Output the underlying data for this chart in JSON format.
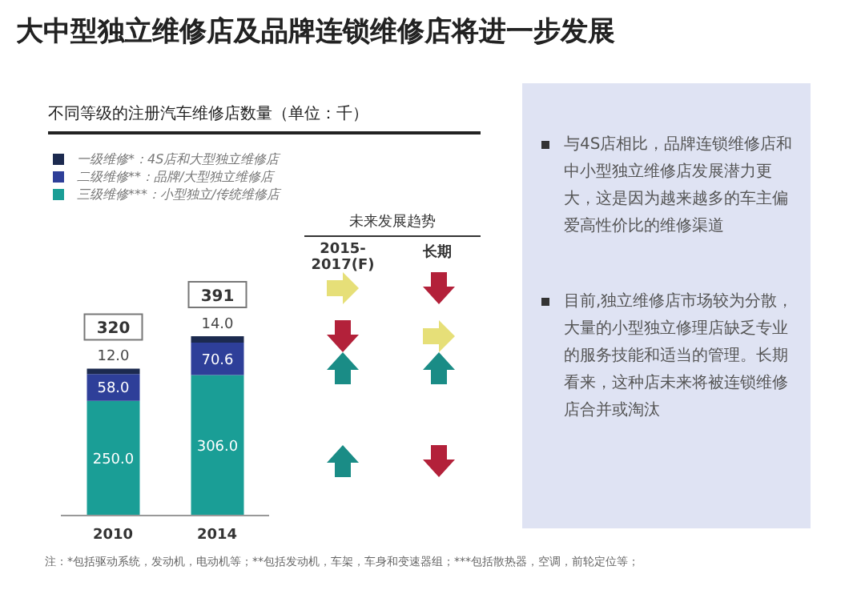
{
  "chart_data": {
    "type": "bar",
    "title": "大中型独立维修店及品牌连锁维修店将进一步发展",
    "subtitle": "不同等级的注册汽车维修店数量（单位：千）",
    "categories": [
      "2010",
      "2014"
    ],
    "stacked": true,
    "legend": "top left",
    "series": [
      {
        "name": "三级维修***：小型独立/传统维修店",
        "color": "#1a9e96",
        "values": [
          250.0,
          306.0
        ],
        "value_labels": [
          "250.0",
          "306.0"
        ]
      },
      {
        "name": "二级维修**：品牌/大型独立维修店",
        "color": "#2e3f99",
        "values": [
          58.0,
          70.6
        ],
        "value_labels": [
          "58.0",
          "70.6"
        ]
      },
      {
        "name": "一级维修*：4S店和大型独立维修店",
        "color": "#1c2a4f",
        "values": [
          12.0,
          14.0
        ],
        "value_labels": [
          "12.0",
          "14.0"
        ]
      }
    ],
    "totals": [
      "320",
      "391"
    ],
    "annotations": [
      "未来发展趋势",
      "2015-2017(F)",
      "长期",
      "与4S店相比，品牌连锁维修店和中小型独立维修店发展潜力更大，这是因为越来越多的车主偏爱高性价比的维修渠道",
      "目前,独立维修店市场较为分散，大量的小型独立修理店缺乏专业的服务技能和适当的管理。长期看来，这种店未来将被连锁维修店合并或淘汰",
      "注：*包括驱动系统，发动机，电动机等；**包括发动机，车架，车身和变速器组；***包括散热器，空调，前轮定位等；"
    ]
  }
}
